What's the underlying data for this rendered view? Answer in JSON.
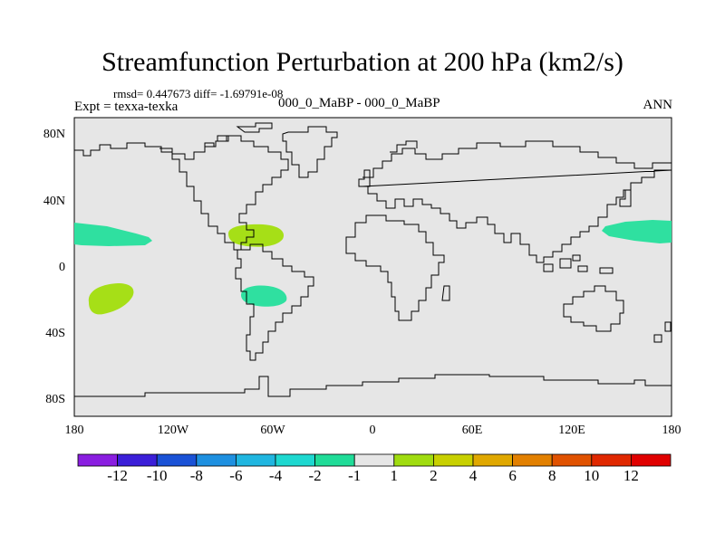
{
  "title": "Streamfunction Perturbation at 200 hPa (km2/s)",
  "stats_line": "rmsd= 0.447673 diff= -1.69791e-08",
  "expt_line": "Expt = texxa-texka",
  "case_line": "000_0_MaBP - 000_0_MaBP",
  "season": "ANN",
  "lat_labels": [
    "80N",
    "40N",
    "0",
    "40S",
    "80S"
  ],
  "lon_labels": [
    "180",
    "120W",
    "60W",
    "0",
    "60E",
    "120E",
    "180"
  ],
  "colorbar": {
    "labels": [
      "-12",
      "-10",
      "-8",
      "-6",
      "-4",
      "-2",
      "-1",
      "1",
      "2",
      "4",
      "6",
      "8",
      "10",
      "12"
    ],
    "colors": [
      "#8a1ee0",
      "#3b1fd8",
      "#1a52d6",
      "#1e90e0",
      "#20b6e0",
      "#1ed8d0",
      "#20dc98",
      "#e6e6e6",
      "#a0dc10",
      "#c8d000",
      "#e0a800",
      "#e28000",
      "#e05200",
      "#e02800",
      "#e00000"
    ]
  },
  "map_background": "#e6e6e6",
  "anomaly_colors": {
    "negative_small": "#2fe0a0",
    "positive_small": "#a6df17"
  }
}
